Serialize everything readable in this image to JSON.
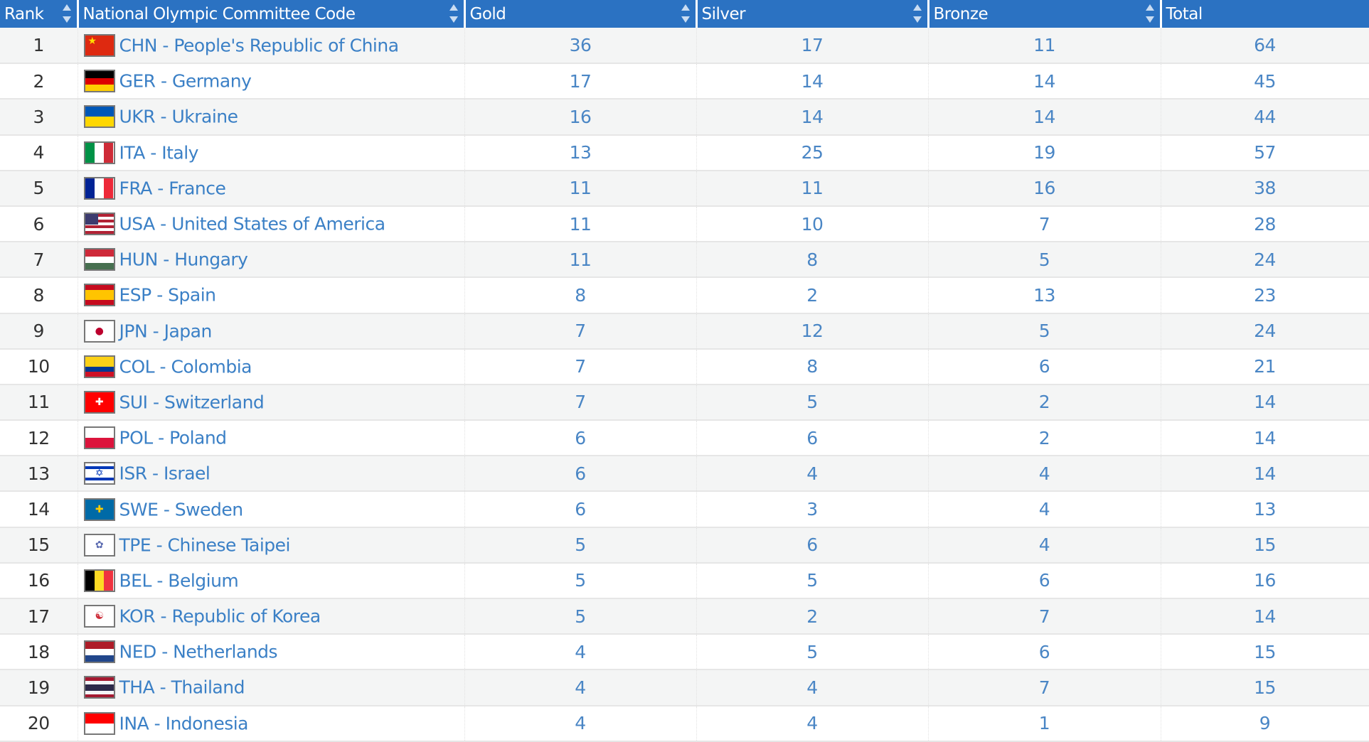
{
  "headers": [
    "Rank",
    "National Olympic Committee Code",
    "Gold",
    "Silver",
    "Bronze",
    "Total"
  ],
  "rows": [
    {
      "rank": "1",
      "noc": "CHN - People's Republic of China",
      "gold": "36",
      "silver": "17",
      "bronze": "11",
      "total": "64",
      "flag": {
        "dir": "h",
        "colors": [
          "#de2910"
        ],
        "emblem": "★",
        "emblem_color": "#ffde00"
      }
    },
    {
      "rank": "2",
      "noc": "GER - Germany",
      "gold": "17",
      "silver": "14",
      "bronze": "14",
      "total": "45",
      "flag": {
        "dir": "h",
        "colors": [
          "#000000",
          "#dd0000",
          "#ffce00"
        ]
      }
    },
    {
      "rank": "3",
      "noc": "UKR - Ukraine",
      "gold": "16",
      "silver": "14",
      "bronze": "14",
      "total": "44",
      "flag": {
        "dir": "h",
        "colors": [
          "#0057b7",
          "#ffd700"
        ]
      }
    },
    {
      "rank": "4",
      "noc": "ITA - Italy",
      "gold": "13",
      "silver": "25",
      "bronze": "19",
      "total": "57",
      "flag": {
        "dir": "v",
        "colors": [
          "#009246",
          "#ffffff",
          "#ce2b37"
        ]
      }
    },
    {
      "rank": "5",
      "noc": "FRA - France",
      "gold": "11",
      "silver": "11",
      "bronze": "16",
      "total": "38",
      "flag": {
        "dir": "v",
        "colors": [
          "#002395",
          "#ffffff",
          "#ed2939"
        ]
      }
    },
    {
      "rank": "6",
      "noc": "USA - United States of America",
      "gold": "11",
      "silver": "10",
      "bronze": "7",
      "total": "28",
      "flag": {
        "dir": "h",
        "colors": [
          "#b22234",
          "#ffffff",
          "#b22234",
          "#ffffff",
          "#b22234",
          "#ffffff",
          "#b22234"
        ],
        "canton": "#3c3b6e"
      }
    },
    {
      "rank": "7",
      "noc": "HUN - Hungary",
      "gold": "11",
      "silver": "8",
      "bronze": "5",
      "total": "24",
      "flag": {
        "dir": "h",
        "colors": [
          "#ce2939",
          "#ffffff",
          "#477050"
        ]
      }
    },
    {
      "rank": "8",
      "noc": "ESP - Spain",
      "gold": "8",
      "silver": "2",
      "bronze": "13",
      "total": "23",
      "flag": {
        "dir": "h",
        "colors": [
          "#c60b1e",
          "#ffc400",
          "#ffc400",
          "#c60b1e"
        ]
      }
    },
    {
      "rank": "9",
      "noc": "JPN - Japan",
      "gold": "7",
      "silver": "12",
      "bronze": "5",
      "total": "24",
      "flag": {
        "dir": "h",
        "colors": [
          "#ffffff"
        ],
        "emblem": "●",
        "emblem_color": "#bc002d"
      }
    },
    {
      "rank": "10",
      "noc": "COL - Colombia",
      "gold": "7",
      "silver": "8",
      "bronze": "6",
      "total": "21",
      "flag": {
        "dir": "h",
        "colors": [
          "#fcd116",
          "#fcd116",
          "#003893",
          "#ce1126"
        ]
      }
    },
    {
      "rank": "11",
      "noc": "SUI - Switzerland",
      "gold": "7",
      "silver": "5",
      "bronze": "2",
      "total": "14",
      "flag": {
        "dir": "h",
        "colors": [
          "#ff0000"
        ],
        "emblem": "✚",
        "emblem_color": "#ffffff"
      }
    },
    {
      "rank": "12",
      "noc": "POL - Poland",
      "gold": "6",
      "silver": "6",
      "bronze": "2",
      "total": "14",
      "flag": {
        "dir": "h",
        "colors": [
          "#ffffff",
          "#dc143c"
        ]
      }
    },
    {
      "rank": "13",
      "noc": "ISR - Israel",
      "gold": "6",
      "silver": "4",
      "bronze": "4",
      "total": "14",
      "flag": {
        "dir": "h",
        "colors": [
          "#ffffff",
          "#0038b8",
          "#ffffff",
          "#ffffff",
          "#ffffff",
          "#0038b8",
          "#ffffff"
        ],
        "emblem": "✡",
        "emblem_color": "#0038b8"
      }
    },
    {
      "rank": "14",
      "noc": "SWE - Sweden",
      "gold": "6",
      "silver": "3",
      "bronze": "4",
      "total": "13",
      "flag": {
        "dir": "h",
        "colors": [
          "#006aa7"
        ],
        "emblem": "✚",
        "emblem_color": "#fecc00"
      }
    },
    {
      "rank": "15",
      "noc": "TPE - Chinese Taipei",
      "gold": "5",
      "silver": "6",
      "bronze": "4",
      "total": "15",
      "flag": {
        "dir": "h",
        "colors": [
          "#ffffff"
        ],
        "emblem": "✿",
        "emblem_color": "#5a6ab0"
      }
    },
    {
      "rank": "16",
      "noc": "BEL - Belgium",
      "gold": "5",
      "silver": "5",
      "bronze": "6",
      "total": "16",
      "flag": {
        "dir": "v",
        "colors": [
          "#000000",
          "#fdda24",
          "#ef3340"
        ]
      }
    },
    {
      "rank": "17",
      "noc": "KOR - Republic of Korea",
      "gold": "5",
      "silver": "2",
      "bronze": "7",
      "total": "14",
      "flag": {
        "dir": "h",
        "colors": [
          "#ffffff"
        ],
        "emblem": "☯",
        "emblem_color": "#cd2e3a"
      }
    },
    {
      "rank": "18",
      "noc": "NED - Netherlands",
      "gold": "4",
      "silver": "5",
      "bronze": "6",
      "total": "15",
      "flag": {
        "dir": "h",
        "colors": [
          "#ae1c28",
          "#ffffff",
          "#21468b"
        ]
      }
    },
    {
      "rank": "19",
      "noc": "THA - Thailand",
      "gold": "4",
      "silver": "4",
      "bronze": "7",
      "total": "15",
      "flag": {
        "dir": "h",
        "colors": [
          "#a51931",
          "#f4f5f8",
          "#2d2a4a",
          "#2d2a4a",
          "#f4f5f8",
          "#a51931"
        ]
      }
    },
    {
      "rank": "20",
      "noc": "INA - Indonesia",
      "gold": "4",
      "silver": "4",
      "bronze": "1",
      "total": "9",
      "flag": {
        "dir": "h",
        "colors": [
          "#ff0000",
          "#ffffff"
        ]
      }
    }
  ]
}
